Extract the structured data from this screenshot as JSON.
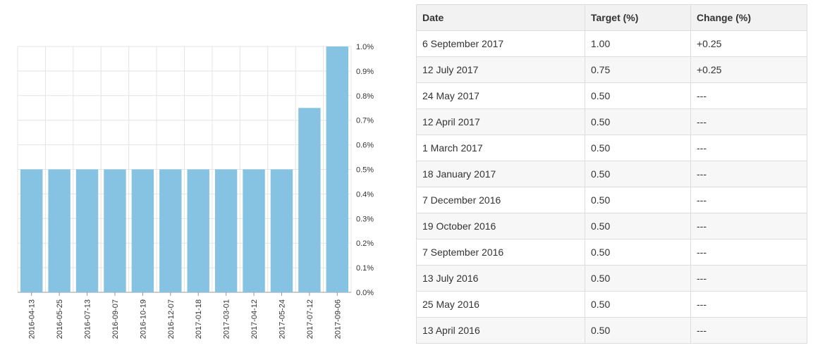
{
  "chart_data": {
    "type": "bar",
    "categories": [
      "2016-04-13",
      "2016-05-25",
      "2016-07-13",
      "2016-09-07",
      "2016-10-19",
      "2016-12-07",
      "2017-01-18",
      "2017-03-01",
      "2017-04-12",
      "2017-05-24",
      "2017-07-12",
      "2017-09-06"
    ],
    "values": [
      0.5,
      0.5,
      0.5,
      0.5,
      0.5,
      0.5,
      0.5,
      0.5,
      0.5,
      0.5,
      0.75,
      1.0
    ],
    "ylim": [
      0,
      1.0
    ],
    "yticks": [
      "0.0%",
      "0.1%",
      "0.2%",
      "0.3%",
      "0.4%",
      "0.5%",
      "0.6%",
      "0.7%",
      "0.8%",
      "0.9%",
      "1.0%"
    ],
    "y_axis_position": "right",
    "grid": true,
    "bar_color": "#86c3e3",
    "title": "",
    "xlabel": "",
    "ylabel": ""
  },
  "table": {
    "headers": [
      "Date",
      "Target (%)",
      "Change (%)"
    ],
    "rows": [
      [
        "6 September 2017",
        "1.00",
        "+0.25"
      ],
      [
        "12 July 2017",
        "0.75",
        "+0.25"
      ],
      [
        "24 May 2017",
        "0.50",
        "---"
      ],
      [
        "12 April 2017",
        "0.50",
        "---"
      ],
      [
        "1 March 2017",
        "0.50",
        "---"
      ],
      [
        "18 January 2017",
        "0.50",
        "---"
      ],
      [
        "7 December 2016",
        "0.50",
        "---"
      ],
      [
        "19 October 2016",
        "0.50",
        "---"
      ],
      [
        "7 September 2016",
        "0.50",
        "---"
      ],
      [
        "13 July 2016",
        "0.50",
        "---"
      ],
      [
        "25 May 2016",
        "0.50",
        "---"
      ],
      [
        "13 April 2016",
        "0.50",
        "---"
      ]
    ]
  }
}
